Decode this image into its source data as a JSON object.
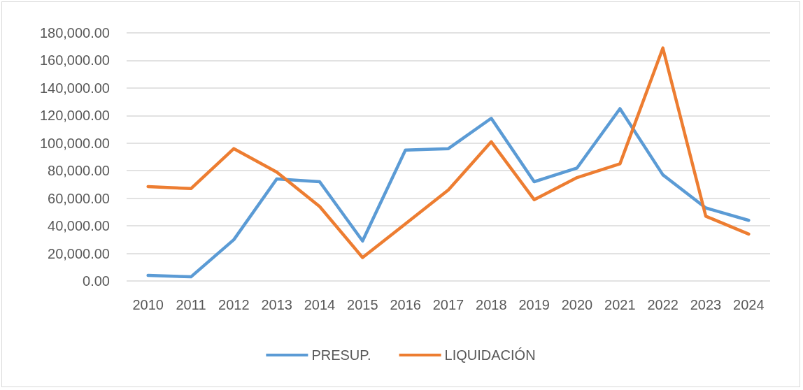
{
  "chart_data": {
    "type": "line",
    "categories": [
      "2010",
      "2011",
      "2012",
      "2013",
      "2014",
      "2015",
      "2016",
      "2017",
      "2018",
      "2019",
      "2020",
      "2021",
      "2022",
      "2023",
      "2024"
    ],
    "series": [
      {
        "name": "PRESUP.",
        "color": "#5b9bd5",
        "values": [
          4000,
          3000,
          30000,
          74000,
          72000,
          29000,
          95000,
          96000,
          118000,
          72000,
          82000,
          125000,
          77000,
          53000,
          44000
        ]
      },
      {
        "name": "LIQUIDACIÓN",
        "color": "#ed7d31",
        "values": [
          68500,
          67000,
          96000,
          79000,
          54000,
          17000,
          41500,
          66000,
          101000,
          59000,
          75000,
          85000,
          169000,
          47000,
          34000
        ]
      }
    ],
    "ylim": [
      0,
      180000
    ],
    "yticks": [
      {
        "value": 0,
        "label": "0.00"
      },
      {
        "value": 20000,
        "label": "20,000.00"
      },
      {
        "value": 40000,
        "label": "40,000.00"
      },
      {
        "value": 60000,
        "label": "60,000.00"
      },
      {
        "value": 80000,
        "label": "80,000.00"
      },
      {
        "value": 100000,
        "label": "100,000.00"
      },
      {
        "value": 120000,
        "label": "120,000.00"
      },
      {
        "value": 140000,
        "label": "140,000.00"
      },
      {
        "value": 160000,
        "label": "160,000.00"
      },
      {
        "value": 180000,
        "label": "180,000.00"
      }
    ],
    "grid": "y",
    "legend": "bottom",
    "marker": "none",
    "line_style": "solid"
  }
}
